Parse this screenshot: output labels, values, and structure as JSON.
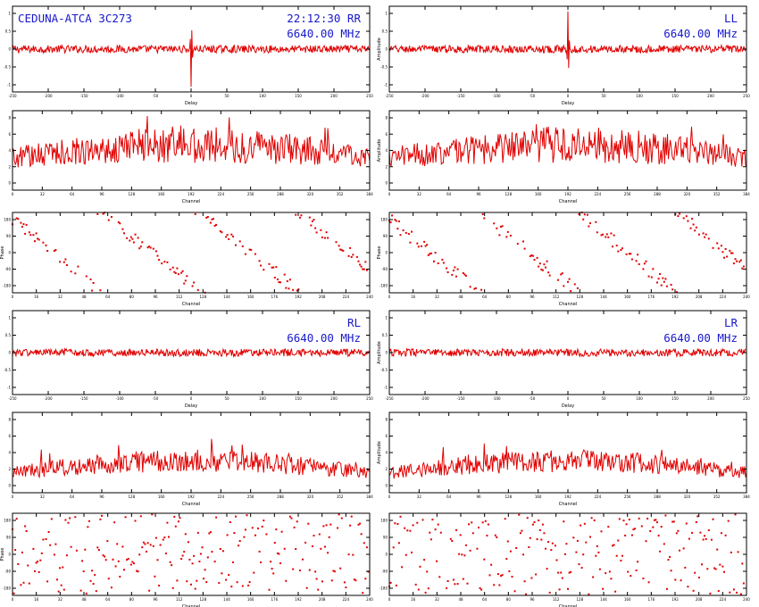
{
  "colors": {
    "trace": "#e00000",
    "annotation": "#1818cc",
    "frame": "#000000",
    "background": "#ffffff"
  },
  "chart_data": [
    {
      "id": "rr-delay",
      "type": "line",
      "profile": "delay-spike",
      "xlabel": "Delay",
      "ylabel": "",
      "spike_sign": -1,
      "x_ticks": [
        "-250",
        "-200",
        "-150",
        "-100",
        "-50",
        "0",
        "50",
        "100",
        "150",
        "200",
        "250"
      ],
      "y_ticks": [
        "1",
        "0.5",
        "0",
        "-0.5",
        "-1"
      ],
      "ylim": [
        -1.25,
        1.25
      ],
      "annotations": {
        "left": "CEDUNA-ATCA 3C273",
        "right": "22:12:30  RR",
        "right2": "6640.00 MHz"
      }
    },
    {
      "id": "ll-delay",
      "type": "line",
      "profile": "delay-spike",
      "xlabel": "Delay",
      "ylabel": "Amplitude",
      "spike_sign": 1,
      "x_ticks": [
        "-250",
        "-200",
        "-150",
        "-100",
        "-50",
        "0",
        "50",
        "100",
        "150",
        "200",
        "250"
      ],
      "y_ticks": [
        "1",
        "0.5",
        "0",
        "-0.5",
        "-1"
      ],
      "ylim": [
        -1.25,
        1.25
      ],
      "annotations": {
        "right": "LL",
        "right2": "6640.00 MHz"
      }
    },
    {
      "id": "rr-amplitude",
      "type": "line",
      "profile": "amplitude",
      "xlabel": "Channel",
      "ylabel": "",
      "x_ticks": [
        "0",
        "32",
        "64",
        "96",
        "128",
        "160",
        "192",
        "224",
        "256",
        "288",
        "320",
        "352",
        "384"
      ],
      "y_ticks": [
        "8",
        "6",
        "4",
        "2",
        "0"
      ],
      "ylim": [
        0,
        10
      ]
    },
    {
      "id": "ll-amplitude",
      "type": "line",
      "profile": "amplitude",
      "xlabel": "Channel",
      "ylabel": "Amplitude",
      "x_ticks": [
        "0",
        "32",
        "64",
        "96",
        "128",
        "160",
        "192",
        "224",
        "256",
        "288",
        "320",
        "352",
        "384"
      ],
      "y_ticks": [
        "8",
        "6",
        "4",
        "2",
        "0"
      ],
      "ylim": [
        0,
        10
      ]
    },
    {
      "id": "rr-phase",
      "type": "scatter",
      "profile": "phase-wrap",
      "xlabel": "Channel",
      "ylabel": "Phase",
      "x_ticks": [
        "0",
        "16",
        "32",
        "48",
        "64",
        "80",
        "96",
        "112",
        "128",
        "144",
        "160",
        "176",
        "192",
        "208",
        "224",
        "240"
      ],
      "y_ticks": [
        "180",
        "90",
        "0",
        "-90",
        "-180"
      ],
      "ylim": [
        -180,
        180
      ]
    },
    {
      "id": "ll-phase",
      "type": "scatter",
      "profile": "phase-wrap",
      "xlabel": "Channel",
      "ylabel": "Phase",
      "x_ticks": [
        "0",
        "16",
        "32",
        "48",
        "64",
        "80",
        "96",
        "112",
        "128",
        "144",
        "160",
        "176",
        "192",
        "208",
        "224",
        "240"
      ],
      "y_ticks": [
        "180",
        "90",
        "0",
        "-90",
        "-180"
      ],
      "ylim": [
        -180,
        180
      ]
    },
    {
      "id": "rl-delay",
      "type": "line",
      "profile": "delay-noise",
      "xlabel": "Delay",
      "ylabel": "",
      "x_ticks": [
        "-250",
        "-200",
        "-150",
        "-100",
        "-50",
        "0",
        "50",
        "100",
        "150",
        "200",
        "250"
      ],
      "y_ticks": [
        "1",
        "0.5",
        "0",
        "-0.5",
        "-1"
      ],
      "ylim": [
        -1.25,
        1.25
      ],
      "annotations": {
        "right": "RL",
        "right2": "6640.00 MHz"
      }
    },
    {
      "id": "lr-delay",
      "type": "line",
      "profile": "delay-noise",
      "xlabel": "Delay",
      "ylabel": "Amplitude",
      "x_ticks": [
        "-250",
        "-200",
        "-150",
        "-100",
        "-50",
        "0",
        "50",
        "100",
        "150",
        "200",
        "250"
      ],
      "y_ticks": [
        "1",
        "0.5",
        "0",
        "-0.5",
        "-1"
      ],
      "ylim": [
        -1.25,
        1.25
      ],
      "annotations": {
        "right": "LR",
        "right2": "6640.00 MHz"
      }
    },
    {
      "id": "rl-amplitude",
      "type": "line",
      "profile": "amplitude-low",
      "xlabel": "Channel",
      "ylabel": "",
      "x_ticks": [
        "0",
        "32",
        "64",
        "96",
        "128",
        "160",
        "192",
        "224",
        "256",
        "288",
        "320",
        "352",
        "384"
      ],
      "y_ticks": [
        "8",
        "6",
        "4",
        "2",
        "0"
      ],
      "ylim": [
        0,
        10
      ]
    },
    {
      "id": "lr-amplitude",
      "type": "line",
      "profile": "amplitude-low",
      "xlabel": "Channel",
      "ylabel": "Amplitude",
      "x_ticks": [
        "0",
        "32",
        "64",
        "96",
        "128",
        "160",
        "192",
        "224",
        "256",
        "288",
        "320",
        "352",
        "384"
      ],
      "y_ticks": [
        "8",
        "6",
        "4",
        "2",
        "0"
      ],
      "ylim": [
        0,
        10
      ]
    },
    {
      "id": "rl-phase",
      "type": "scatter",
      "profile": "phase-random",
      "xlabel": "Channel",
      "ylabel": "Phase",
      "x_ticks": [
        "0",
        "16",
        "32",
        "48",
        "64",
        "80",
        "96",
        "112",
        "128",
        "144",
        "160",
        "176",
        "192",
        "208",
        "224",
        "240"
      ],
      "y_ticks": [
        "180",
        "90",
        "0",
        "-90",
        "-180"
      ],
      "ylim": [
        -180,
        180
      ]
    },
    {
      "id": "lr-phase",
      "type": "scatter",
      "profile": "phase-random",
      "xlabel": "Channel",
      "ylabel": "",
      "x_ticks": [
        "0",
        "16",
        "32",
        "48",
        "64",
        "80",
        "96",
        "112",
        "128",
        "144",
        "160",
        "176",
        "192",
        "208",
        "224",
        "240"
      ],
      "y_ticks": [
        "180",
        "90",
        "0",
        "-90",
        "-180"
      ],
      "ylim": [
        -180,
        180
      ]
    }
  ]
}
